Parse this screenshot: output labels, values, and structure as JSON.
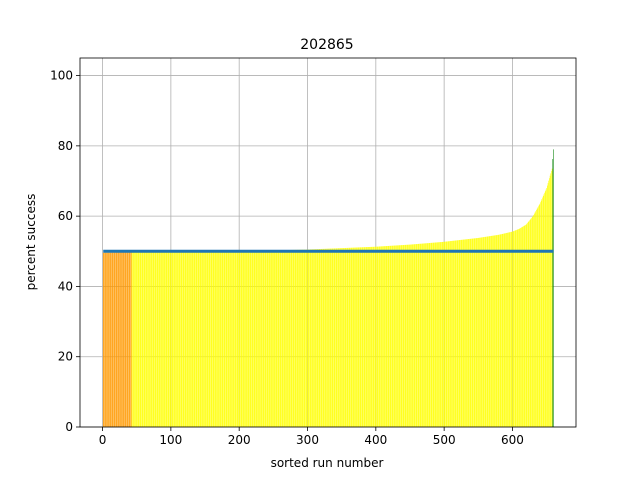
{
  "chart_data": {
    "type": "bar",
    "title": "202865",
    "xlabel": "sorted run number",
    "ylabel": "percent success",
    "xlim": [
      -33,
      693
    ],
    "ylim": [
      0,
      105
    ],
    "xticks": [
      0,
      100,
      200,
      300,
      400,
      500,
      600
    ],
    "yticks": [
      0,
      20,
      40,
      60,
      80,
      100
    ],
    "grid": true,
    "n_runs": 660,
    "colors": {
      "below": "#ff9900",
      "middle": "#ffff00",
      "top": "#008000",
      "reference": "#1f77b4"
    },
    "bands": [
      {
        "color": "below",
        "x_start": 1,
        "x_end": 42
      },
      {
        "color": "middle",
        "x_start": 43,
        "x_end": 658
      },
      {
        "color": "top",
        "x_start": 659,
        "x_end": 660
      }
    ],
    "value_curve": [
      [
        1,
        49.6
      ],
      [
        42,
        49.7
      ],
      [
        60,
        49.9
      ],
      [
        100,
        50.0
      ],
      [
        200,
        50.0
      ],
      [
        240,
        50.2
      ],
      [
        300,
        50.5
      ],
      [
        350,
        50.9
      ],
      [
        400,
        51.3
      ],
      [
        450,
        51.9
      ],
      [
        500,
        52.7
      ],
      [
        550,
        53.8
      ],
      [
        580,
        54.7
      ],
      [
        600,
        55.6
      ],
      [
        610,
        56.4
      ],
      [
        620,
        57.6
      ],
      [
        630,
        60.0
      ],
      [
        640,
        63.5
      ],
      [
        650,
        68.0
      ],
      [
        655,
        71.5
      ],
      [
        658,
        73.5
      ],
      [
        660,
        79.0
      ]
    ],
    "reference_line": {
      "y": 50,
      "x_start": 1,
      "x_end": 660
    }
  }
}
